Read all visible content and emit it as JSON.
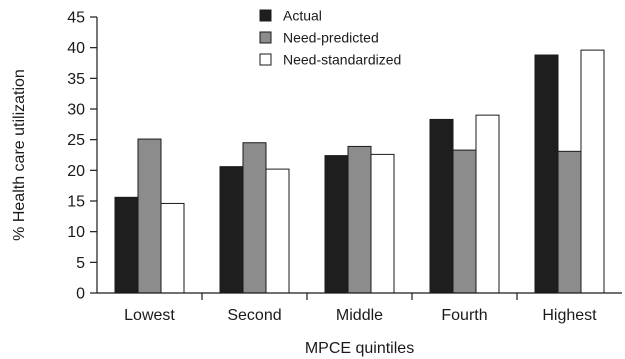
{
  "chart_data": {
    "type": "bar",
    "xlabel": "MPCE quintiles",
    "ylabel": "% Health care utilization",
    "ylim": [
      0,
      45
    ],
    "y_ticks": [
      0,
      5,
      10,
      15,
      20,
      25,
      30,
      35,
      40,
      45
    ],
    "categories": [
      "Lowest",
      "Second",
      "Middle",
      "Fourth",
      "Highest"
    ],
    "series": [
      {
        "name": "Actual",
        "values": [
          15.6,
          20.6,
          22.4,
          28.3,
          38.8
        ]
      },
      {
        "name": "Need-predicted",
        "values": [
          25.1,
          24.5,
          23.9,
          23.3,
          23.1
        ]
      },
      {
        "name": "Need-standardized",
        "values": [
          14.6,
          20.2,
          22.6,
          29.0,
          39.6
        ]
      }
    ],
    "legend_position": "top-center",
    "grid": false,
    "colors": {
      "Actual": "#1e1e1e",
      "Need-predicted": "#8c8c8c",
      "Need-standardized": "#ffffff"
    }
  }
}
